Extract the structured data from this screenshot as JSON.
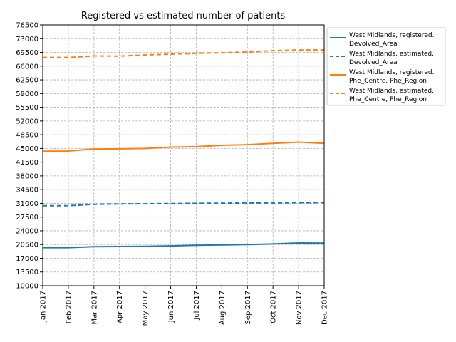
{
  "chart_data": {
    "type": "line",
    "title": "Registered vs estimated number of  patients",
    "xlabel": "",
    "ylabel": "",
    "categories": [
      "Jan 2017",
      "Feb 2017",
      "Mar 2017",
      "Apr 2017",
      "May 2017",
      "Jun 2017",
      "Jul 2017",
      "Aug 2017",
      "Sep 2017",
      "Oct 2017",
      "Nov 2017",
      "Dec 2017"
    ],
    "ylim": [
      10000,
      76500
    ],
    "yticks": [
      10000,
      13500,
      17000,
      20500,
      24000,
      27500,
      31000,
      34500,
      38000,
      41500,
      45000,
      48500,
      52000,
      55500,
      59000,
      62500,
      66000,
      69500,
      73000,
      76500
    ],
    "grid": true,
    "legend_position": "outside-right-top",
    "series": [
      {
        "name": "West Midlands, registered.\nDevolved_Area",
        "color": "#1f77b4",
        "style": "solid",
        "values": [
          19700,
          19700,
          19950,
          20000,
          20050,
          20150,
          20300,
          20400,
          20500,
          20650,
          20900,
          20850
        ]
      },
      {
        "name": "West Midlands, estimated.\nDevolved_Area",
        "color": "#1f77b4",
        "style": "dashed",
        "values": [
          30400,
          30400,
          30750,
          30850,
          30900,
          30950,
          31000,
          31050,
          31100,
          31100,
          31150,
          31200
        ]
      },
      {
        "name": "West Midlands, registered.\nPhe_Centre, Phe_Region",
        "color": "#ff7f0e",
        "style": "solid",
        "values": [
          44300,
          44350,
          44850,
          44900,
          45000,
          45350,
          45450,
          45800,
          45950,
          46300,
          46600,
          46300
        ]
      },
      {
        "name": "West Midlands, estimated.\nPhe_Centre, Phe_Region",
        "color": "#ff7f0e",
        "style": "dashed",
        "values": [
          68200,
          68200,
          68600,
          68550,
          68850,
          69050,
          69250,
          69400,
          69600,
          69950,
          70100,
          70150
        ]
      }
    ]
  }
}
